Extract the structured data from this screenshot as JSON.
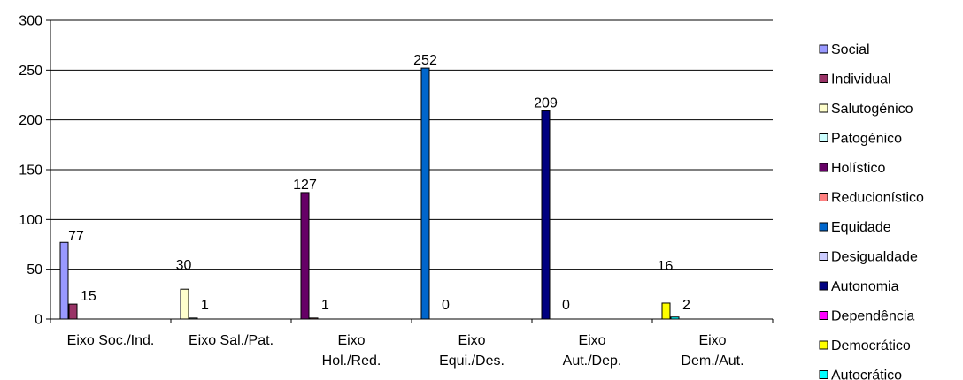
{
  "chart_data": {
    "type": "bar",
    "title": "",
    "xlabel": "",
    "ylabel": "",
    "ylim": [
      0,
      300
    ],
    "yticks": [
      0,
      50,
      100,
      150,
      200,
      250,
      300
    ],
    "grid": true,
    "legend_position": "right",
    "categories": [
      [
        "Eixo Soc./Ind."
      ],
      [
        "Eixo Sal./Pat."
      ],
      [
        "Eixo",
        "Hol./Red."
      ],
      [
        "Eixo",
        "Equi./Des."
      ],
      [
        "Eixo",
        "Aut./Dep."
      ],
      [
        "Eixo",
        "Dem./Aut."
      ]
    ],
    "series": [
      {
        "name": "Social",
        "color": "#9999FF",
        "values": [
          77,
          null,
          null,
          null,
          null,
          null
        ]
      },
      {
        "name": "Individual",
        "color": "#993366",
        "values": [
          15,
          null,
          null,
          null,
          null,
          null
        ]
      },
      {
        "name": "Salutogénico",
        "color": "#FFFFCC",
        "values": [
          null,
          30,
          null,
          null,
          null,
          null
        ]
      },
      {
        "name": "Patogénico",
        "color": "#CCFFFF",
        "values": [
          null,
          1,
          null,
          null,
          null,
          null
        ]
      },
      {
        "name": "Holístico",
        "color": "#660066",
        "values": [
          null,
          null,
          127,
          null,
          null,
          null
        ]
      },
      {
        "name": "Reducionístico",
        "color": "#FF8080",
        "values": [
          null,
          null,
          1,
          null,
          null,
          null
        ]
      },
      {
        "name": "Equidade",
        "color": "#0066CC",
        "values": [
          null,
          null,
          null,
          252,
          null,
          null
        ]
      },
      {
        "name": "Desigualdade",
        "color": "#CCCCFF",
        "values": [
          null,
          null,
          null,
          0,
          null,
          null
        ]
      },
      {
        "name": "Autonomia",
        "color": "#000080",
        "values": [
          null,
          null,
          null,
          null,
          209,
          null
        ]
      },
      {
        "name": "Dependência",
        "color": "#FF00FF",
        "values": [
          null,
          null,
          null,
          null,
          0,
          null
        ]
      },
      {
        "name": "Democrático",
        "color": "#FFFF00",
        "values": [
          null,
          null,
          null,
          null,
          null,
          16
        ]
      },
      {
        "name": "Autocrático",
        "color": "#00FFFF",
        "values": [
          null,
          null,
          null,
          null,
          null,
          2
        ]
      }
    ]
  }
}
